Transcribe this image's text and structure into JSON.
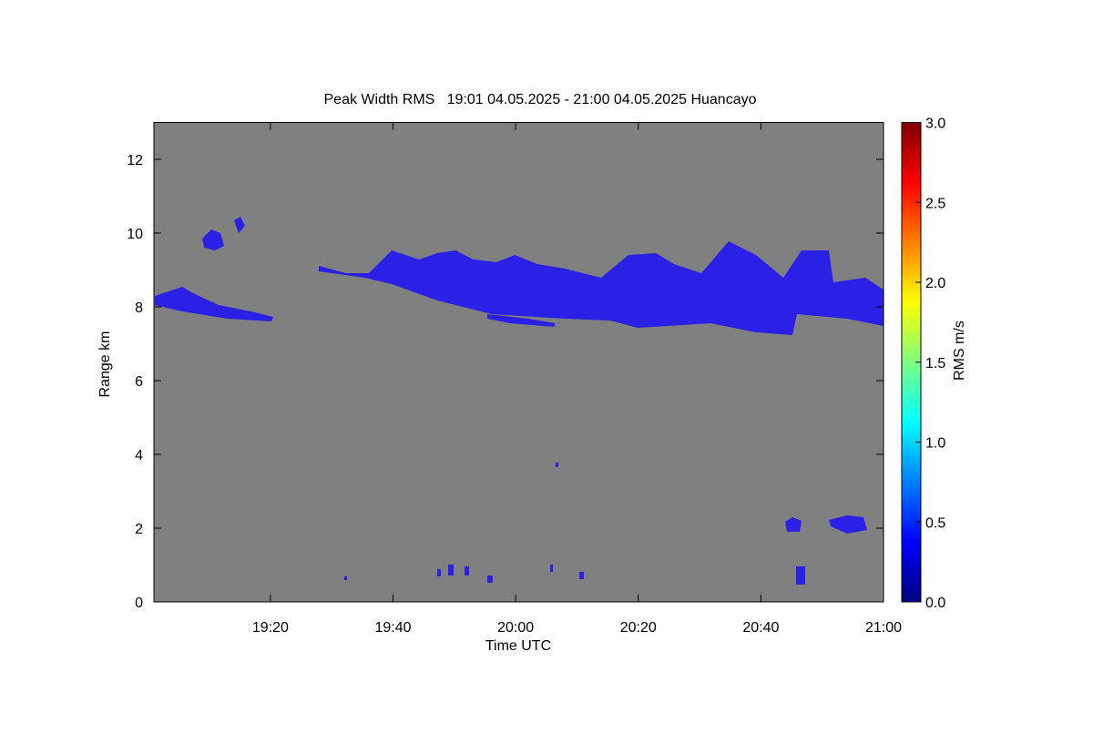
{
  "chart_data": {
    "type": "heatmap",
    "title": "Peak Width RMS   19:01 04.05.2025 - 21:00 04.05.2025 Huancayo",
    "xlabel": "Time UTC",
    "ylabel": "Range km",
    "colorbar_label": "RMS m/s",
    "xlim": [
      1141,
      1260
    ],
    "xticks": [
      {
        "value": 1160,
        "label": "19:20"
      },
      {
        "value": 1180,
        "label": "19:40"
      },
      {
        "value": 1200,
        "label": "20:00"
      },
      {
        "value": 1220,
        "label": "20:20"
      },
      {
        "value": 1240,
        "label": "20:40"
      },
      {
        "value": 1260,
        "label": "21:00"
      }
    ],
    "ylim": [
      0,
      13
    ],
    "yticks": [
      0,
      2,
      4,
      6,
      8,
      10,
      12
    ],
    "colorbar_lim": [
      0,
      3
    ],
    "colorbar_ticks": [
      {
        "value": 0,
        "label": "0.0"
      },
      {
        "value": 0.5,
        "label": "0.5"
      },
      {
        "value": 1,
        "label": "1.0"
      },
      {
        "value": 1.5,
        "label": "1.5"
      },
      {
        "value": 2,
        "label": "2.0"
      },
      {
        "value": 2.5,
        "label": "2.5"
      },
      {
        "value": 3,
        "label": "3.0"
      }
    ],
    "colormap": [
      "#00007f",
      "#0000ff",
      "#007fff",
      "#00ffff",
      "#7fff7f",
      "#ffff00",
      "#ff7f00",
      "#ff0000",
      "#7f0000"
    ],
    "background": "#808080"
  }
}
